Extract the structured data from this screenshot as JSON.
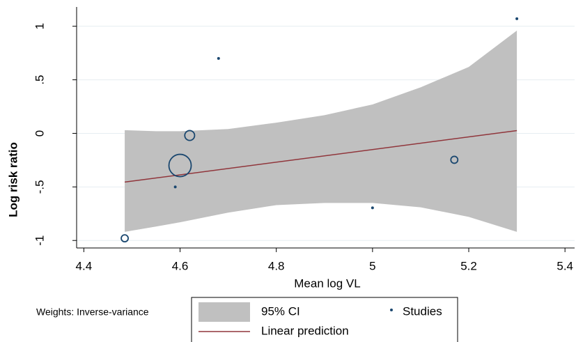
{
  "chart_data": {
    "type": "scatter",
    "note": "Weights: Inverse-variance",
    "x_label": "Mean log VL",
    "y_label": "Log risk ratio",
    "xlim": [
      4.385,
      5.42
    ],
    "ylim": [
      -1.07,
      1.18
    ],
    "xticks": [
      4.4,
      4.6,
      4.8,
      5,
      5.2,
      5.4
    ],
    "yticks": [
      {
        "value": -1,
        "label": "-1"
      },
      {
        "value": -0.5,
        "label": "-.5"
      },
      0,
      {
        "value": 0.5,
        "label": ".5"
      },
      1
    ],
    "grid": true,
    "ci": {
      "name": "95% CI",
      "color": "#c0c0c0",
      "x": [
        4.485,
        4.55,
        4.6,
        4.7,
        4.8,
        4.9,
        5.0,
        5.1,
        5.2,
        5.3
      ],
      "upper": [
        0.03,
        0.02,
        0.02,
        0.04,
        0.1,
        0.17,
        0.27,
        0.43,
        0.62,
        0.96
      ],
      "lower": [
        -0.92,
        -0.87,
        -0.83,
        -0.74,
        -0.67,
        -0.65,
        -0.65,
        -0.69,
        -0.78,
        -0.92
      ]
    },
    "fit": {
      "name": "Linear prediction",
      "color": "#90353b",
      "x": [
        4.485,
        5.3
      ],
      "y": [
        -0.455,
        0.026
      ]
    },
    "studies": {
      "name": "Studies",
      "color": "#1a476f",
      "x": [
        4.485,
        4.59,
        4.6,
        4.62,
        4.68,
        5.0,
        5.17,
        5.3
      ],
      "y": [
        -0.98,
        -0.5,
        -0.3,
        -0.02,
        0.7,
        -0.695,
        -0.247,
        1.07
      ],
      "weights": [
        4,
        0.5,
        41,
        8,
        0.5,
        0.5,
        4,
        0.5
      ]
    }
  }
}
